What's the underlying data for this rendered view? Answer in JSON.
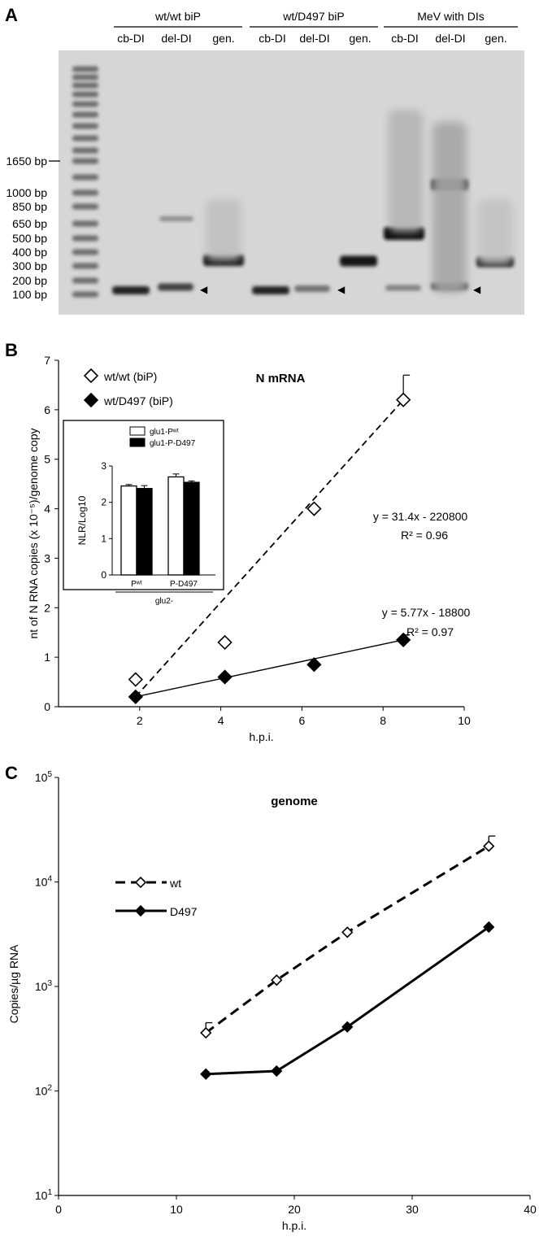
{
  "panel_letters": [
    "A",
    "B",
    "C"
  ],
  "gel": {
    "groups": [
      {
        "label": "wt/wt biP",
        "lanes": [
          "cb-DI",
          "del-DI",
          "gen."
        ]
      },
      {
        "label": "wt/D497 biP",
        "lanes": [
          "cb-DI",
          "del-DI",
          "gen."
        ]
      },
      {
        "label": "MeV with DIs",
        "lanes": [
          "cb-DI",
          "del-DI",
          "gen."
        ]
      }
    ],
    "ladder_labels": [
      "1650 bp",
      "1000 bp",
      "850 bp",
      "650 bp",
      "500 bp",
      "400 bp",
      "300 bp",
      "200 bp",
      "100 bp"
    ],
    "arrowhead_glyph": "◀"
  },
  "chart_data": [
    {
      "type": "scatter",
      "title": "N mRNA",
      "xlabel": "h.p.i.",
      "ylabel": "nt of N  RNA copies (x 10⁻⁵)/genome copy",
      "xlim": [
        0,
        10
      ],
      "ylim": [
        0,
        7
      ],
      "xticks": [
        2,
        4,
        6,
        8,
        10
      ],
      "yticks": [
        0,
        1,
        2,
        3,
        4,
        5,
        6,
        7
      ],
      "series": [
        {
          "name": "wt/wt (biP)",
          "marker": "open-diamond",
          "x": [
            1.9,
            4.1,
            6.3,
            8.5
          ],
          "y": [
            0.55,
            1.3,
            4.0,
            6.2
          ],
          "error_plus": [
            0,
            0,
            0,
            0.5
          ]
        },
        {
          "name": "wt/D497 (biP)",
          "marker": "filled-diamond",
          "x": [
            1.9,
            4.1,
            6.3,
            8.5
          ],
          "y": [
            0.2,
            0.6,
            0.85,
            1.35
          ],
          "error_plus": [
            0,
            0,
            0,
            0.1
          ]
        }
      ],
      "fits": [
        {
          "series": "wt/wt (biP)",
          "style": "dashed",
          "x": [
            1.9,
            8.5
          ],
          "y": [
            0.2,
            6.2
          ],
          "equation": "y = 31.4x - 220800",
          "r2": "R² = 0.96"
        },
        {
          "series": "wt/D497 (biP)",
          "style": "solid",
          "x": [
            1.9,
            8.5
          ],
          "y": [
            0.2,
            1.35
          ],
          "equation": "y = 5.77x - 18800",
          "r2": "R² = 0.97"
        }
      ],
      "inset": {
        "type": "bar",
        "ylabel": "NLR/Log10",
        "ylim": [
          0,
          3
        ],
        "yticks": [
          0,
          1,
          2,
          3
        ],
        "categories": [
          "Pʷᵗ",
          "P-D497"
        ],
        "group_label": "glu2-",
        "series": [
          {
            "name": "glu1-Pʷᵗ",
            "color": "#ffffff",
            "values": [
              2.45,
              2.7
            ],
            "errors": [
              0.04,
              0.08
            ]
          },
          {
            "name": "glu1-P-D497",
            "color": "#000000",
            "values": [
              2.38,
              2.55
            ],
            "errors": [
              0.08,
              0.04
            ]
          }
        ]
      }
    },
    {
      "type": "line",
      "title": "genome",
      "xlabel": "h.p.i.",
      "ylabel": "Copies/µg RNA",
      "xlim": [
        0,
        40
      ],
      "xticks": [
        0,
        10,
        20,
        30,
        40
      ],
      "yscale": "log",
      "ylim": [
        10,
        100000
      ],
      "ytick_labels": [
        {
          "base": "10",
          "exp": "1",
          "value": 10
        },
        {
          "base": "10",
          "exp": "2",
          "value": 100
        },
        {
          "base": "10",
          "exp": "3",
          "value": 1000
        },
        {
          "base": "10",
          "exp": "4",
          "value": 10000
        },
        {
          "base": "10",
          "exp": "5",
          "value": 100000
        }
      ],
      "series": [
        {
          "name": "wt",
          "style": "dashed",
          "marker": "open-diamond",
          "x": [
            12.5,
            18.5,
            24.5,
            36.5
          ],
          "y": [
            360,
            1150,
            3300,
            22000
          ],
          "error_plus": [
            450,
            0,
            0,
            27500
          ]
        },
        {
          "name": "D497",
          "style": "solid",
          "marker": "filled-diamond",
          "x": [
            12.5,
            18.5,
            24.5,
            36.5
          ],
          "y": [
            145,
            155,
            410,
            3700
          ],
          "error_plus": [
            0,
            0,
            0,
            0
          ]
        }
      ]
    }
  ]
}
